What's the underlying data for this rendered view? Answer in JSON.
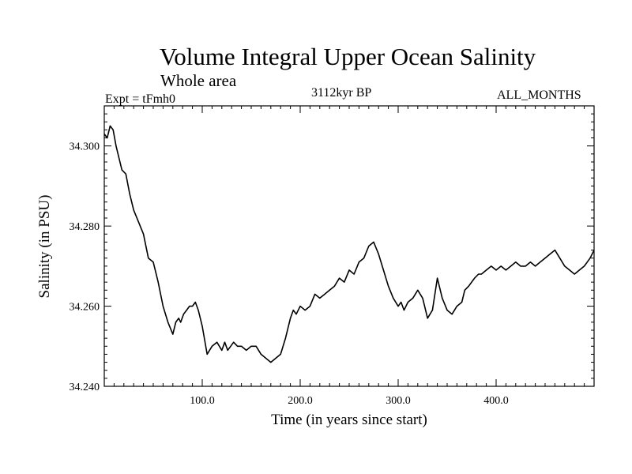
{
  "header": {
    "title": "Volume Integral Upper Ocean Salinity",
    "subtitle": "Whole area",
    "experiment": "Expt = tFmh0",
    "period": "3112kyr BP",
    "months": "ALL_MONTHS"
  },
  "chart_data": {
    "type": "line",
    "title": "Volume Integral Upper Ocean Salinity",
    "xlabel": "Time (in years since start)",
    "ylabel": "Salinity (in PSU)",
    "xlim": [
      0,
      500
    ],
    "ylim": [
      34.24,
      34.31
    ],
    "x_ticks": [
      100,
      200,
      300,
      400
    ],
    "x_tick_labels": [
      "100.0",
      "200.0",
      "300.0",
      "400.0"
    ],
    "y_ticks": [
      34.24,
      34.26,
      34.28,
      34.3
    ],
    "y_tick_labels": [
      "34.240",
      "34.260",
      "34.280",
      "34.300"
    ],
    "grid": false,
    "series": [
      {
        "name": "Salinity",
        "x": [
          0,
          3,
          6,
          9,
          12,
          15,
          18,
          22,
          26,
          30,
          35,
          40,
          45,
          50,
          55,
          60,
          65,
          70,
          73,
          76,
          78,
          81,
          84,
          87,
          90,
          93,
          96,
          100,
          105,
          110,
          115,
          120,
          123,
          126,
          129,
          132,
          136,
          140,
          145,
          150,
          155,
          160,
          165,
          170,
          175,
          180,
          185,
          190,
          193,
          196,
          200,
          205,
          210,
          215,
          220,
          225,
          230,
          235,
          240,
          245,
          250,
          255,
          260,
          265,
          270,
          275,
          280,
          285,
          290,
          295,
          300,
          303,
          306,
          310,
          315,
          320,
          325,
          330,
          335,
          340,
          345,
          350,
          355,
          360,
          365,
          368,
          372,
          375,
          378,
          382,
          385,
          390,
          395,
          400,
          405,
          410,
          415,
          420,
          425,
          430,
          435,
          440,
          445,
          450,
          455,
          460,
          465,
          470,
          475,
          480,
          485,
          490,
          493,
          496,
          500
        ],
        "values": [
          34.303,
          34.302,
          34.305,
          34.304,
          34.3,
          34.297,
          34.294,
          34.293,
          34.288,
          34.284,
          34.281,
          34.278,
          34.272,
          34.271,
          34.266,
          34.26,
          34.256,
          34.253,
          34.256,
          34.257,
          34.256,
          34.258,
          34.259,
          34.26,
          34.26,
          34.261,
          34.259,
          34.255,
          34.248,
          34.25,
          34.251,
          34.249,
          34.251,
          34.249,
          34.25,
          34.251,
          34.25,
          34.25,
          34.249,
          34.25,
          34.25,
          34.248,
          34.247,
          34.246,
          34.247,
          34.248,
          34.252,
          34.257,
          34.259,
          34.258,
          34.26,
          34.259,
          34.26,
          34.263,
          34.262,
          34.263,
          34.264,
          34.265,
          34.267,
          34.266,
          34.269,
          34.268,
          34.271,
          34.272,
          34.275,
          34.276,
          34.273,
          34.269,
          34.265,
          34.262,
          34.26,
          34.261,
          34.259,
          34.261,
          34.262,
          34.264,
          34.262,
          34.257,
          34.259,
          34.267,
          34.262,
          34.259,
          34.258,
          34.26,
          34.261,
          34.264,
          34.265,
          34.266,
          34.267,
          34.268,
          34.268,
          34.269,
          34.27,
          34.269,
          34.27,
          34.269,
          34.27,
          34.271,
          34.27,
          34.27,
          34.271,
          34.27,
          34.271,
          34.272,
          34.273,
          34.274,
          34.272,
          34.27,
          34.269,
          34.268,
          34.269,
          34.27,
          34.271,
          34.272,
          34.274
        ]
      }
    ]
  }
}
